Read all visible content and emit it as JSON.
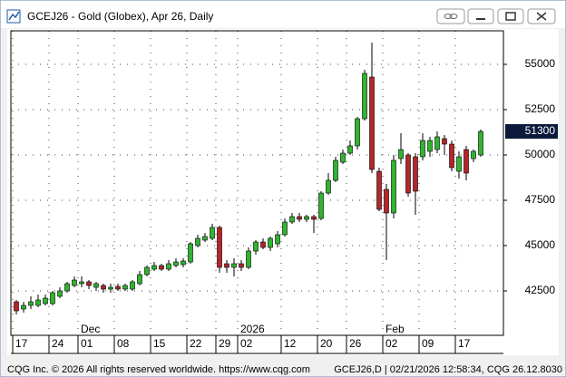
{
  "window_title": "GCEJ26 - Gold (Globex), Apr 26, Daily",
  "chart_data": {
    "type": "candlestick",
    "categories": [
      "17",
      null,
      null,
      null,
      null,
      "24",
      null,
      null,
      null,
      "01",
      null,
      null,
      null,
      null,
      "08",
      null,
      null,
      null,
      null,
      "15",
      null,
      null,
      null,
      null,
      "22",
      null,
      null,
      null,
      "29",
      null,
      null,
      "02",
      null,
      null,
      null,
      null,
      null,
      "12",
      null,
      null,
      null,
      null,
      "20",
      null,
      null,
      null,
      "26",
      null,
      null,
      null,
      null,
      "02",
      null,
      null,
      null,
      null,
      "09",
      null,
      null,
      null,
      null,
      "17",
      null,
      null,
      null
    ],
    "months": [
      null,
      null,
      null,
      null,
      null,
      null,
      null,
      null,
      null,
      "Dec",
      null,
      null,
      null,
      null,
      null,
      null,
      null,
      null,
      null,
      null,
      null,
      null,
      null,
      null,
      null,
      null,
      null,
      null,
      null,
      null,
      null,
      "2026",
      null,
      null,
      null,
      null,
      null,
      null,
      null,
      null,
      null,
      null,
      null,
      null,
      null,
      null,
      null,
      null,
      null,
      null,
      null,
      "Feb",
      null,
      null,
      null,
      null,
      null,
      null,
      null,
      null,
      null,
      null,
      null,
      null,
      null
    ],
    "open": [
      41900,
      41500,
      41700,
      41700,
      41800,
      41800,
      42200,
      42500,
      42800,
      42900,
      43000,
      42700,
      42800,
      42600,
      42750,
      42600,
      42600,
      42900,
      43400,
      43700,
      43900,
      43700,
      43900,
      43950,
      44100,
      45000,
      45300,
      45400,
      46000,
      44000,
      43800,
      44000,
      43800,
      44700,
      45200,
      44900,
      45100,
      45600,
      46300,
      46600,
      46450,
      46600,
      46500,
      47900,
      48600,
      49600,
      50100,
      50500,
      52000,
      54300,
      49100,
      48100,
      46800,
      49800,
      50000,
      49900,
      49900,
      50200,
      50300,
      50900,
      50600,
      49100,
      50300,
      49800,
      50000
    ],
    "high": [
      42000,
      41900,
      42200,
      42300,
      42300,
      42500,
      42700,
      43000,
      43300,
      43300,
      43100,
      43000,
      42900,
      42900,
      42900,
      42900,
      43100,
      43600,
      43900,
      44100,
      44000,
      44200,
      44300,
      44300,
      45200,
      45600,
      45700,
      46200,
      46100,
      44200,
      44300,
      44200,
      44900,
      45300,
      45400,
      45500,
      45800,
      46500,
      46800,
      46800,
      46700,
      46700,
      48000,
      49000,
      49900,
      50300,
      50800,
      52100,
      54700,
      56200,
      49300,
      48400,
      50000,
      51200,
      50100,
      50100,
      51200,
      51000,
      51300,
      51100,
      50800,
      50200,
      50500,
      50300,
      51400
    ],
    "low": [
      41200,
      41300,
      41500,
      41600,
      41700,
      41700,
      42100,
      42400,
      42700,
      42700,
      42600,
      42500,
      42400,
      42400,
      42500,
      42500,
      42500,
      42800,
      43300,
      43600,
      43600,
      43600,
      43800,
      43800,
      44000,
      44900,
      45200,
      45300,
      43500,
      43500,
      43300,
      43600,
      43700,
      44500,
      44800,
      44700,
      44900,
      45500,
      46200,
      46300,
      46300,
      45700,
      46400,
      47800,
      48500,
      49500,
      50000,
      50300,
      51900,
      49000,
      46900,
      44200,
      46500,
      49500,
      47700,
      46700,
      49700,
      49900,
      50100,
      50000,
      49100,
      48700,
      48600,
      49600,
      49900
    ],
    "close": [
      41400,
      41700,
      41900,
      42000,
      42100,
      42400,
      42500,
      42900,
      43100,
      43000,
      42800,
      42900,
      42600,
      42700,
      42600,
      42800,
      43000,
      43400,
      43800,
      43900,
      43700,
      44000,
      44100,
      44150,
      45100,
      45400,
      45500,
      46000,
      43800,
      43800,
      44000,
      43800,
      44700,
      45200,
      44900,
      45400,
      45600,
      46300,
      46600,
      46450,
      46600,
      46450,
      47900,
      48600,
      49700,
      50100,
      50500,
      52000,
      54500,
      49200,
      47000,
      46800,
      49700,
      50300,
      47900,
      48000,
      50800,
      50800,
      51000,
      50600,
      49300,
      49900,
      49000,
      50200,
      51300
    ],
    "up_color": "#2fb52f",
    "down_color": "#b3262a",
    "ylim": [
      40050,
      56850
    ],
    "yticks": [
      42500,
      45000,
      47500,
      50000,
      52500,
      55000
    ],
    "last_price": 51300,
    "grid": true
  },
  "footer": {
    "left": "CQG Inc. © 2026 All rights reserved worldwide. https://www.cqg.com",
    "right": "GCEJ26,D | 02/21/2026 12:58:34, CQG 26.12.8030"
  }
}
